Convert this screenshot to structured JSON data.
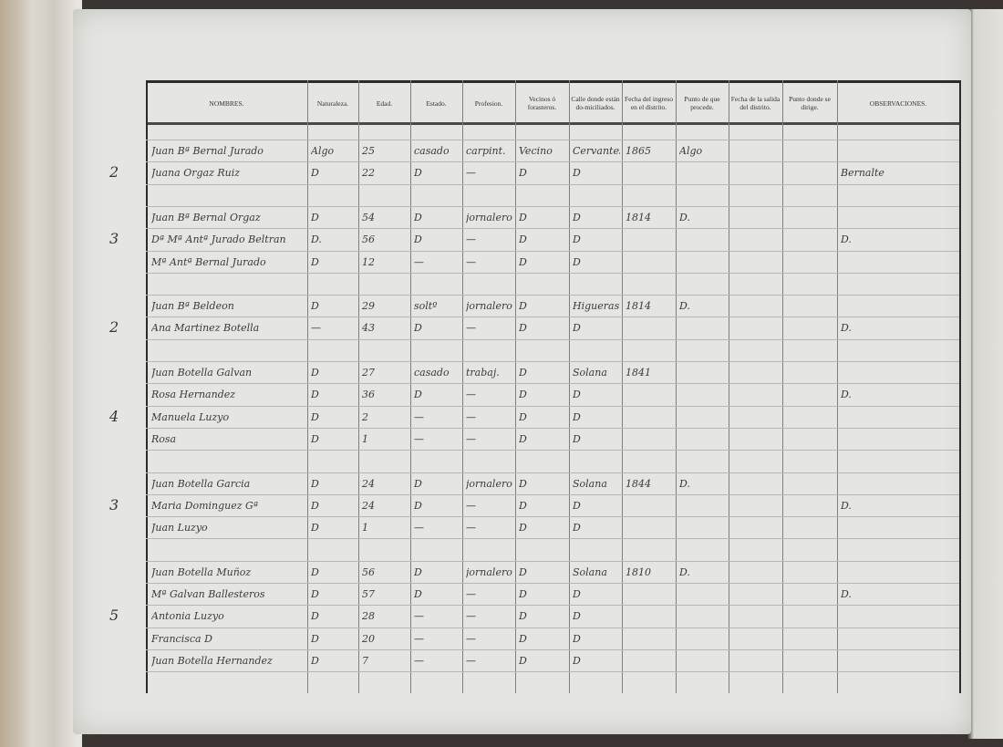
{
  "columns": [
    "NOMBRES.",
    "Naturaleza.",
    "Edad.",
    "Estado.",
    "Profesion.",
    "Vecinos ó forasteros.",
    "Calle donde están do-miciliados.",
    "Fecha del ingreso en el distrito.",
    "Punto de que procede.",
    "Fecha de la salida del distrito.",
    "Punto donde se dirige.",
    "OBSERVACIONES."
  ],
  "rows": [
    [
      "Juan Bª Bernal Jurado",
      "Algo",
      "25",
      "casado",
      "carpint.",
      "Vecino",
      "Cervantes",
      "1865",
      "Algo",
      "",
      "",
      ""
    ],
    [
      "Juana Orgaz Ruiz",
      "D",
      "22",
      "D",
      "—",
      "D",
      "D",
      "",
      "",
      "",
      "",
      "Bernalte"
    ],
    [
      "",
      "",
      "",
      "",
      "",
      "",
      "",
      "",
      "",
      "",
      "",
      ""
    ],
    [
      "Juan Bª Bernal Orgaz",
      "D",
      "54",
      "D",
      "jornalero",
      "D",
      "D",
      "1814",
      "D.",
      "",
      "",
      ""
    ],
    [
      "Dª Mª Antª Jurado Beltran",
      "D.",
      "56",
      "D",
      "—",
      "D",
      "D",
      "",
      "",
      "",
      "",
      "D."
    ],
    [
      "Mª Antª Bernal Jurado",
      "D",
      "12",
      "—",
      "—",
      "D",
      "D",
      "",
      "",
      "",
      "",
      ""
    ],
    [
      "",
      "",
      "",
      "",
      "",
      "",
      "",
      "",
      "",
      "",
      "",
      ""
    ],
    [
      "Juan Bª Beldeon",
      "D",
      "29",
      "soltº",
      "jornalero",
      "D",
      "Higueras",
      "1814",
      "D.",
      "",
      "",
      ""
    ],
    [
      "Ana Martinez Botella",
      "—",
      "43",
      "D",
      "—",
      "D",
      "D",
      "",
      "",
      "",
      "",
      "D."
    ],
    [
      "",
      "",
      "",
      "",
      "",
      "",
      "",
      "",
      "",
      "",
      "",
      ""
    ],
    [
      "Juan Botella Galvan",
      "D",
      "27",
      "casado",
      "trabaj.",
      "D",
      "Solana",
      "1841",
      "",
      "",
      "",
      ""
    ],
    [
      "Rosa Hernandez",
      "D",
      "36",
      "D",
      "—",
      "D",
      "D",
      "",
      "",
      "",
      "",
      "D."
    ],
    [
      "Manuela Luzyo",
      "D",
      "2",
      "—",
      "—",
      "D",
      "D",
      "",
      "",
      "",
      "",
      ""
    ],
    [
      "Rosa",
      "D",
      "1",
      "—",
      "—",
      "D",
      "D",
      "",
      "",
      "",
      "",
      ""
    ],
    [
      "",
      "",
      "",
      "",
      "",
      "",
      "",
      "",
      "",
      "",
      "",
      ""
    ],
    [
      "Juan Botella Garcia",
      "D",
      "24",
      "D",
      "jornalero",
      "D",
      "Solana",
      "1844",
      "D.",
      "",
      "",
      ""
    ],
    [
      "Maria Dominguez Gª",
      "D",
      "24",
      "D",
      "—",
      "D",
      "D",
      "",
      "",
      "",
      "",
      "D."
    ],
    [
      "Juan Luzyo",
      "D",
      "1",
      "—",
      "—",
      "D",
      "D",
      "",
      "",
      "",
      "",
      ""
    ],
    [
      "",
      "",
      "",
      "",
      "",
      "",
      "",
      "",
      "",
      "",
      "",
      ""
    ],
    [
      "Juan Botella Muñoz",
      "D",
      "56",
      "D",
      "jornalero",
      "D",
      "Solana",
      "1810",
      "D.",
      "",
      "",
      ""
    ],
    [
      "Mª Galvan Ballesteros",
      "D",
      "57",
      "D",
      "—",
      "D",
      "D",
      "",
      "",
      "",
      "",
      "D."
    ],
    [
      "Antonia Luzyo",
      "D",
      "28",
      "—",
      "—",
      "D",
      "D",
      "",
      "",
      "",
      "",
      ""
    ],
    [
      "Francisca D",
      "D",
      "20",
      "—",
      "—",
      "D",
      "D",
      "",
      "",
      "",
      "",
      ""
    ],
    [
      "Juan Botella Hernandez",
      "D",
      "7",
      "—",
      "—",
      "D",
      "D",
      "",
      "",
      "",
      "",
      ""
    ]
  ],
  "groups": [
    {
      "row": 1,
      "label": "2"
    },
    {
      "row": 4,
      "label": "3"
    },
    {
      "row": 8,
      "label": "2"
    },
    {
      "row": 12,
      "label": "4"
    },
    {
      "row": 16,
      "label": "3"
    },
    {
      "row": 21,
      "label": "5"
    }
  ]
}
